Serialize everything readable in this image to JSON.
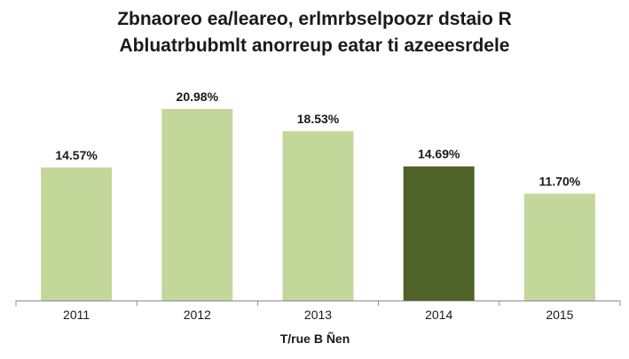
{
  "chart_data": {
    "type": "bar",
    "title": "Zbnaoreo ea/leareo, erlmrbselpoozr dstaio  R",
    "subtitle": "Abluatrbubmlt anorreup eatar ti azeeesrdele",
    "xlabel": "T/rue B Ñen",
    "ylabel": "",
    "categories": [
      "2011",
      "2012",
      "2013",
      "2014",
      "2015"
    ],
    "values": [
      14.57,
      20.98,
      18.53,
      14.69,
      11.7
    ],
    "data_labels": [
      "14.57%",
      "20.98%",
      "18.53%",
      "14.69%",
      "11.70%"
    ],
    "ylim": [
      0,
      24
    ],
    "grid": false,
    "legend": "none",
    "highlight_index": 3,
    "colors": {
      "bar": "#c4d79b",
      "highlight": "#4f6228",
      "axis": "#8c8c8c"
    }
  }
}
